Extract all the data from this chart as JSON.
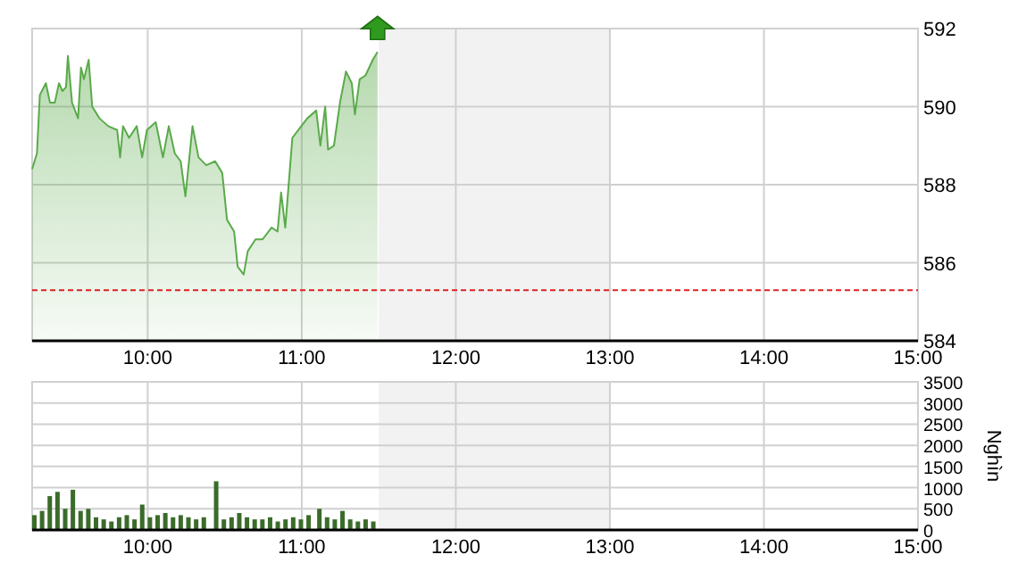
{
  "chart_data": [
    {
      "type": "area",
      "color": "#5aaa4a",
      "grid": true,
      "x": [
        9.25,
        9.281,
        9.3,
        9.339,
        9.366,
        9.397,
        9.424,
        9.447,
        9.47,
        9.482,
        9.509,
        9.548,
        9.567,
        9.586,
        9.617,
        9.64,
        9.687,
        9.744,
        9.802,
        9.821,
        9.84,
        9.879,
        9.929,
        9.964,
        9.995,
        10.052,
        10.099,
        10.137,
        10.176,
        10.214,
        10.245,
        10.291,
        10.33,
        10.38,
        10.438,
        10.484,
        10.515,
        10.561,
        10.584,
        10.623,
        10.65,
        10.7,
        10.746,
        10.804,
        10.843,
        10.866,
        10.893,
        10.939,
        10.997,
        11.036,
        11.094,
        11.121,
        11.152,
        11.171,
        11.209,
        11.248,
        11.287,
        11.325,
        11.345,
        11.376,
        11.414,
        11.461,
        11.492
      ],
      "values": [
        588.4,
        588.8,
        590.3,
        590.6,
        590.1,
        590.1,
        590.6,
        590.4,
        590.5,
        591.3,
        590.1,
        589.7,
        591.0,
        590.7,
        591.2,
        590.0,
        589.7,
        589.5,
        589.4,
        588.7,
        589.5,
        589.2,
        589.5,
        588.7,
        589.4,
        589.6,
        588.7,
        589.5,
        588.8,
        588.6,
        587.7,
        589.5,
        588.7,
        588.5,
        588.6,
        588.3,
        587.1,
        586.8,
        585.9,
        585.7,
        586.3,
        586.6,
        586.6,
        586.9,
        586.8,
        587.8,
        586.9,
        589.2,
        589.5,
        589.7,
        589.9,
        589.0,
        590.0,
        588.9,
        589.0,
        590.1,
        590.9,
        590.6,
        589.8,
        590.7,
        590.8,
        591.2,
        591.4
      ],
      "xlim": [
        9.25,
        15
      ],
      "xticks": [
        {
          "value": 10,
          "label": "10:00"
        },
        {
          "value": 11,
          "label": "11:00"
        },
        {
          "value": 12,
          "label": "12:00"
        },
        {
          "value": 13,
          "label": "13:00"
        },
        {
          "value": 14,
          "label": "14:00"
        },
        {
          "value": 15,
          "label": "15:00"
        }
      ],
      "ylim": [
        584,
        592
      ],
      "yticks": [
        584,
        586,
        588,
        590,
        592
      ],
      "bands": [
        {
          "axis": "x",
          "from": 11.5,
          "to": 13,
          "color": "#f2f2f2"
        }
      ],
      "ref_lines": [
        {
          "axis": "y",
          "value": 585.3,
          "color": "#dd2222",
          "line_style": "dashed"
        }
      ]
    },
    {
      "type": "bar",
      "color": "#3a6b2a",
      "grid": true,
      "ylabel": "Nghìn",
      "x": [
        9.25,
        9.3,
        9.35,
        9.4,
        9.45,
        9.5,
        9.55,
        9.6,
        9.65,
        9.7,
        9.75,
        9.8,
        9.85,
        9.9,
        9.95,
        10.0,
        10.05,
        10.1,
        10.15,
        10.2,
        10.25,
        10.3,
        10.35,
        10.43,
        10.48,
        10.53,
        10.58,
        10.63,
        10.68,
        10.73,
        10.78,
        10.83,
        10.88,
        10.93,
        10.98,
        11.03,
        11.1,
        11.15,
        11.2,
        11.25,
        11.3,
        11.35,
        11.4,
        11.45
      ],
      "values": [
        350,
        450,
        800,
        900,
        500,
        950,
        450,
        500,
        300,
        250,
        200,
        300,
        350,
        250,
        600,
        300,
        350,
        400,
        300,
        350,
        300,
        250,
        300,
        1150,
        250,
        300,
        400,
        300,
        250,
        250,
        300,
        200,
        250,
        300,
        250,
        350,
        500,
        300,
        250,
        450,
        250,
        200,
        250,
        200
      ],
      "xlim": [
        9.25,
        15
      ],
      "xticks": [
        {
          "value": 10,
          "label": "10:00"
        },
        {
          "value": 11,
          "label": "11:00"
        },
        {
          "value": 12,
          "label": "12:00"
        },
        {
          "value": 13,
          "label": "13:00"
        },
        {
          "value": 14,
          "label": "14:00"
        },
        {
          "value": 15,
          "label": "15:00"
        }
      ],
      "ylim": [
        0,
        3500
      ],
      "yticks": [
        0,
        500,
        1000,
        1500,
        2000,
        2500,
        3000,
        3500
      ],
      "bands": [
        {
          "axis": "x",
          "from": 11.5,
          "to": 13,
          "color": "#f2f2f2"
        }
      ]
    }
  ]
}
